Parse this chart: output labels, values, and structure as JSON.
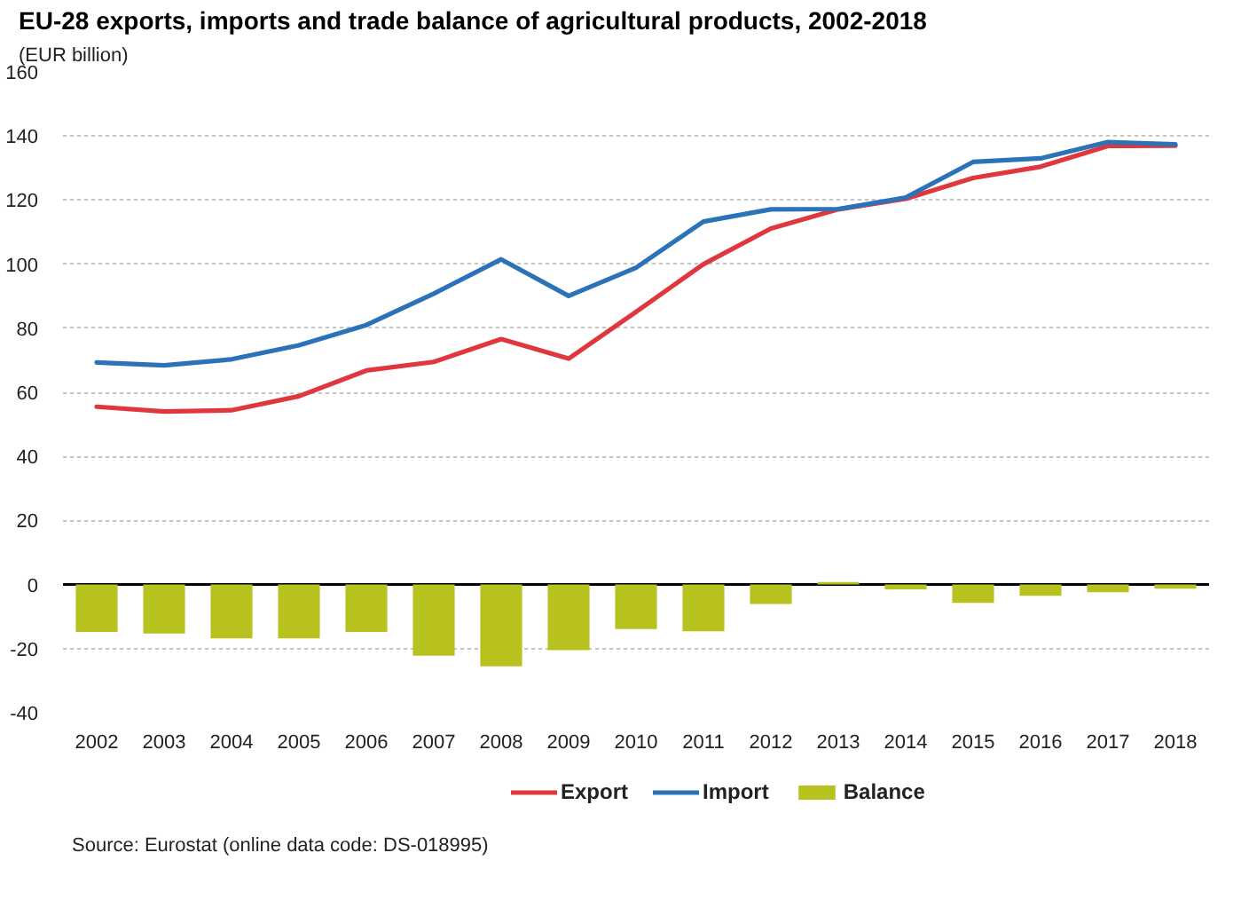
{
  "chart_data": {
    "type": "line",
    "title": "EU-28 exports, imports and trade balance of agricultural products, 2002-2018",
    "subtitle": "(EUR billion)",
    "categories": [
      "2002",
      "2003",
      "2004",
      "2005",
      "2006",
      "2007",
      "2008",
      "2009",
      "2010",
      "2011",
      "2012",
      "2013",
      "2014",
      "2015",
      "2016",
      "2017",
      "2018"
    ],
    "series": [
      {
        "name": "Export",
        "color": "#e0373f",
        "values": [
          55.5,
          54.0,
          54.4,
          58.8,
          66.8,
          69.5,
          76.6,
          70.5,
          85.1,
          100.0,
          111.1,
          117.1,
          120.4,
          126.9,
          130.4,
          136.9,
          137.0
        ]
      },
      {
        "name": "Import",
        "color": "#2b72b8",
        "values": [
          69.3,
          68.4,
          70.3,
          74.7,
          81.0,
          90.8,
          101.5,
          90.1,
          98.9,
          113.3,
          117.1,
          117.2,
          120.8,
          131.9,
          133.0,
          138.1,
          137.4
        ]
      },
      {
        "name": "Balance",
        "type": "bar",
        "color": "#b8c21e",
        "values": [
          -14.8,
          -15.3,
          -16.8,
          -16.8,
          -14.8,
          -22.2,
          -25.5,
          -20.5,
          -13.9,
          -14.6,
          -6.1,
          0.8,
          -1.5,
          -5.7,
          -3.5,
          -2.4,
          -1.3
        ]
      }
    ],
    "ylim": [
      -40,
      160
    ],
    "yticks": [
      -40,
      -20,
      0,
      20,
      40,
      60,
      80,
      100,
      120,
      140,
      160
    ],
    "grid": "y",
    "legend": "bottom",
    "annotations": [
      "Source: Eurostat (online data code: DS-018995)"
    ]
  }
}
